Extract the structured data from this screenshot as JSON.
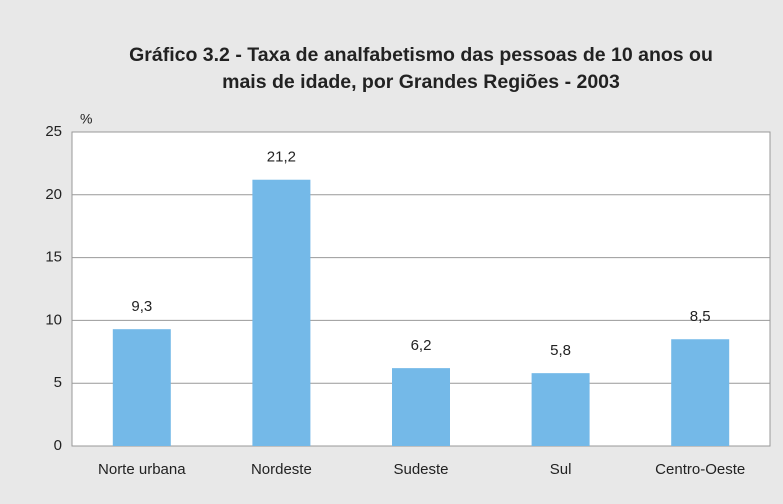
{
  "chart_data": {
    "type": "bar",
    "title": [
      "Gráfico 3.2 - Taxa de analfabetismo das pessoas de 10 anos ou",
      "mais de idade, por Grandes Regiões - 2003"
    ],
    "y_axis_label": "%",
    "categories": [
      "Norte urbana",
      "Nordeste",
      "Sudeste",
      "Sul",
      "Centro-Oeste"
    ],
    "values": [
      9.3,
      21.2,
      6.2,
      5.8,
      8.5
    ],
    "value_labels": [
      "9,3",
      "21,2",
      "6,2",
      "5,8",
      "8,5"
    ],
    "color": "#74b9e8",
    "ylim": [
      0,
      25
    ],
    "yticks": [
      0,
      5,
      10,
      15,
      20,
      25
    ],
    "grid": true
  }
}
